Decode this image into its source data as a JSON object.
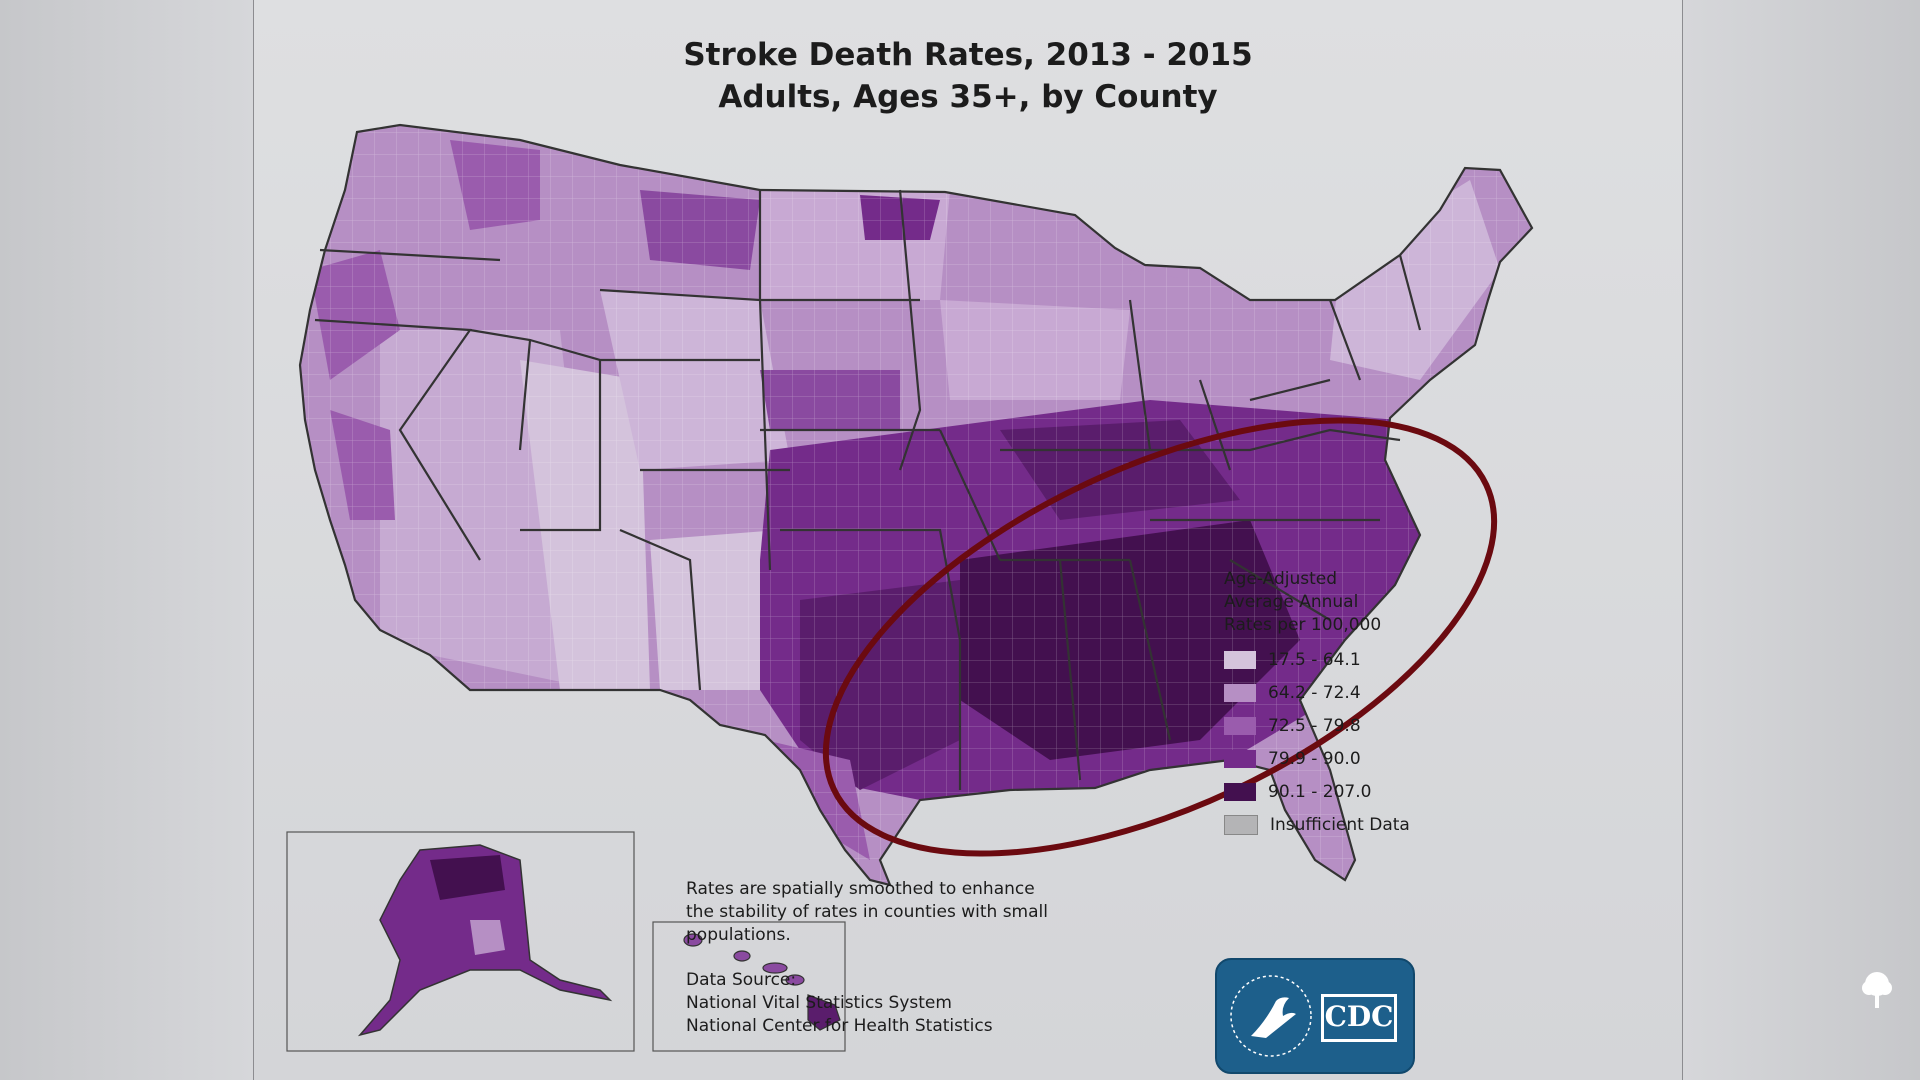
{
  "title_line1": "Stroke Death Rates, 2013 - 2015",
  "title_line2": "Adults, Ages 35+, by County",
  "legend": {
    "heading": [
      "Age-Adjusted",
      "Average Annual",
      "Rates per 100,000"
    ],
    "items": [
      {
        "label": "17.5 - 64.1",
        "color": "#d4c3dc"
      },
      {
        "label": "64.2 - 72.4",
        "color": "#b68fc4"
      },
      {
        "label": "72.5 - 79.8",
        "color": "#9a5cad"
      },
      {
        "label": "79.9 - 90.0",
        "color": "#742b8a"
      },
      {
        "label": "90.1 - 207.0",
        "color": "#43104f"
      },
      {
        "label": "Insufficient Data",
        "color": "#b4b4b6"
      }
    ]
  },
  "note": [
    "Rates are spatially smoothed to enhance",
    "the stability of rates in counties with small",
    "populations."
  ],
  "source": [
    "Data Source:",
    "National Vital Statistics System",
    "National Center for Health Statistics"
  ],
  "logo": {
    "text": "CDC",
    "ring_text": "DEPARTMENT OF HEALTH & HUMAN SERVICES USA"
  },
  "colors": {
    "highlight_ellipse": "#6b0a10",
    "state_border": "#333333",
    "cdc_blue": "#1d5f8b"
  },
  "icons": [
    "hhs-eagle-icon",
    "tree-icon"
  ]
}
